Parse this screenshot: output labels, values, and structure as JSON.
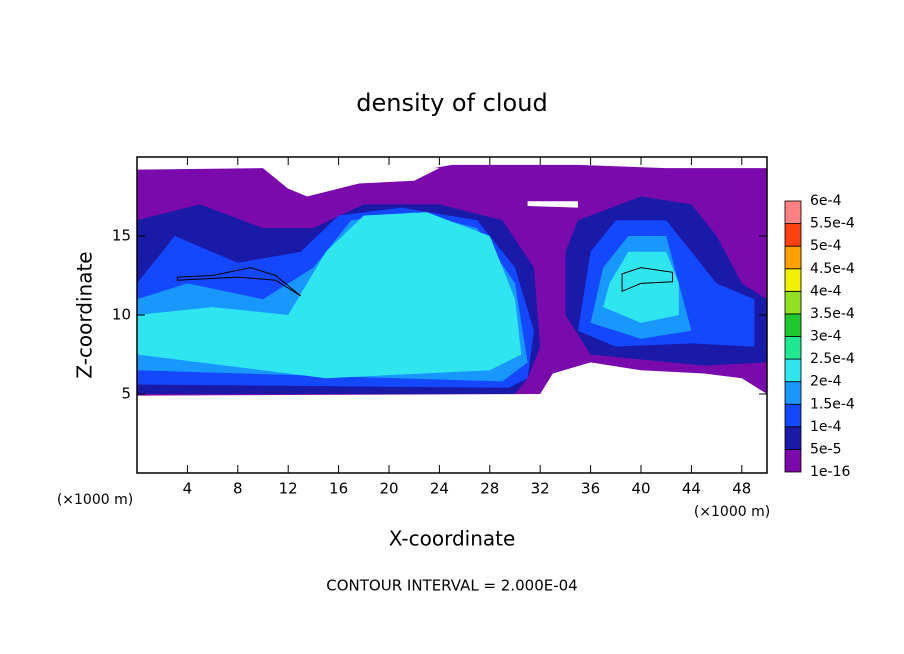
{
  "chart_data": {
    "type": "contourf",
    "title": "density of cloud",
    "x_label": "X-coordinate",
    "y_label": "Z-coordinate",
    "x_unit_label": "(×1000 m)",
    "y_unit_label": "(×1000 m)",
    "annotation": "CONTOUR INTERVAL = 2.000E-04",
    "xlim": [
      0,
      50
    ],
    "ylim": [
      0,
      20
    ],
    "xticks": [
      4,
      8,
      12,
      16,
      20,
      24,
      28,
      32,
      36,
      40,
      44,
      48
    ],
    "yticks": [
      5,
      10,
      15
    ],
    "colorbar": {
      "levels": [
        1e-16,
        {
          "value": 5e-05,
          "label": "5e-5"
        },
        {
          "value": 0.0001,
          "label": "1e-4"
        },
        {
          "value": 0.00015,
          "label": "1.5e-4"
        },
        {
          "value": 0.0002,
          "label": "2e-4"
        },
        {
          "value": 0.00025,
          "label": "2.5e-4"
        },
        {
          "value": 0.0003,
          "label": "3e-4"
        },
        {
          "value": 0.00035,
          "label": "3.5e-4"
        },
        {
          "value": 0.0004,
          "label": "4e-4"
        },
        {
          "value": 0.00045,
          "label": "4.5e-4"
        },
        {
          "value": 0.0005,
          "label": "5e-4"
        },
        {
          "value": 0.00055,
          "label": "5.5e-4"
        },
        {
          "value": 0.0006,
          "label": "6e-4"
        }
      ],
      "colors": [
        "#7a0aac",
        "#1a1aa8",
        "#1448ff",
        "#1898ff",
        "#30e6ee",
        "#20e890",
        "#20c830",
        "#90e020",
        "#f0f000",
        "#ffa000",
        "#ff4010",
        "#ff8080"
      ]
    }
  }
}
